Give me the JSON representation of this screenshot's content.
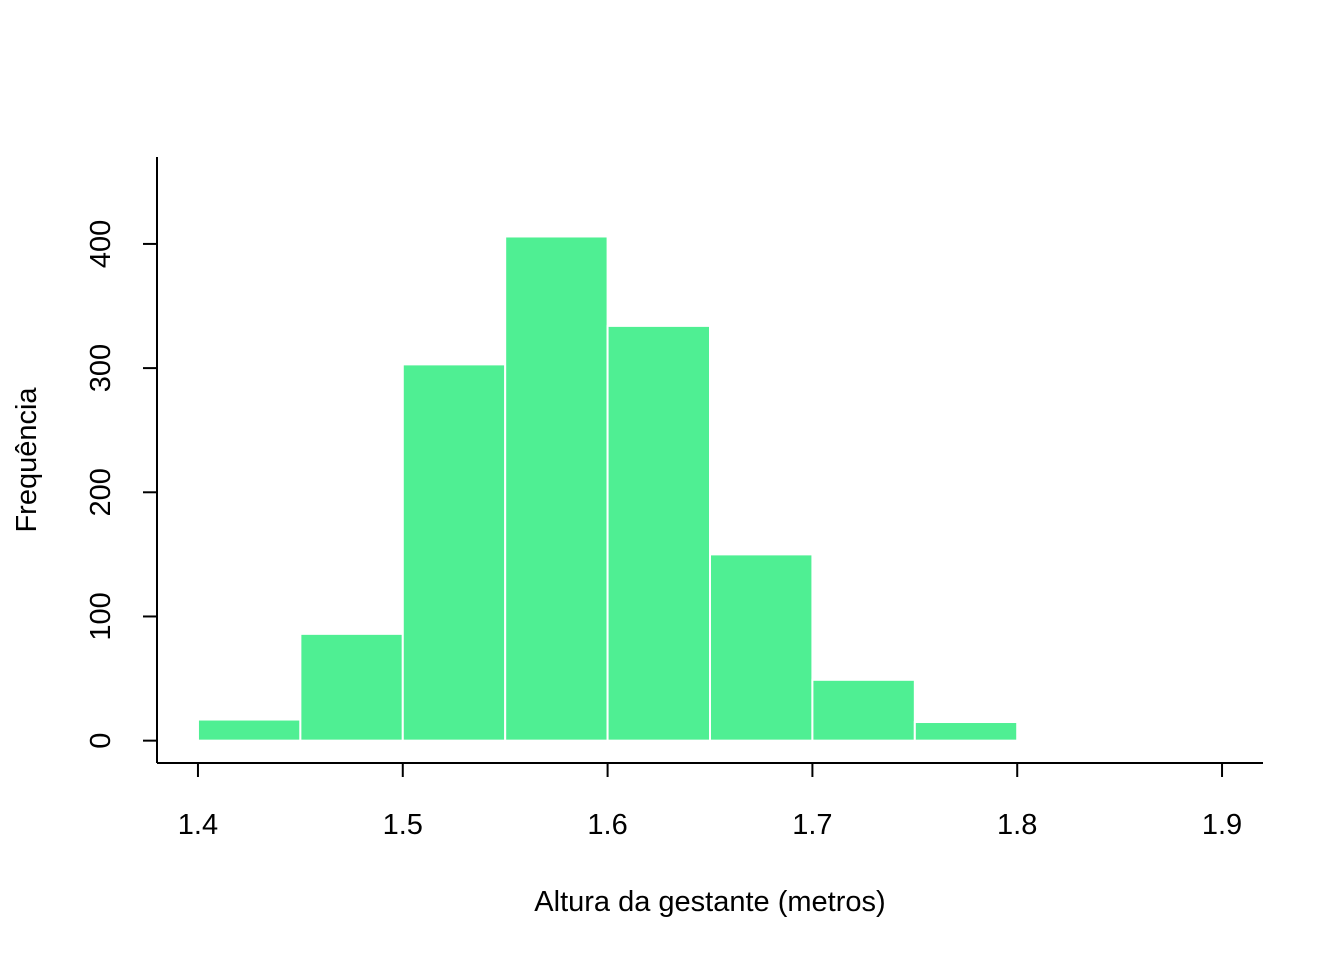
{
  "chart_data": {
    "type": "bar",
    "title": "",
    "xlabel": "Altura da gestante (metros)",
    "ylabel": "Frequência",
    "bins": [
      {
        "start": 1.4,
        "end": 1.45,
        "value": 17
      },
      {
        "start": 1.45,
        "end": 1.5,
        "value": 86
      },
      {
        "start": 1.5,
        "end": 1.55,
        "value": 303
      },
      {
        "start": 1.55,
        "end": 1.6,
        "value": 406
      },
      {
        "start": 1.6,
        "end": 1.65,
        "value": 334
      },
      {
        "start": 1.65,
        "end": 1.7,
        "value": 150
      },
      {
        "start": 1.7,
        "end": 1.75,
        "value": 49
      },
      {
        "start": 1.75,
        "end": 1.8,
        "value": 15
      }
    ],
    "xlim": [
      1.38,
      1.92
    ],
    "ylim": [
      -18,
      470
    ],
    "x_ticks": [
      {
        "value": 1.4,
        "label": "1.4"
      },
      {
        "value": 1.5,
        "label": "1.5"
      },
      {
        "value": 1.6,
        "label": "1.6"
      },
      {
        "value": 1.7,
        "label": "1.7"
      },
      {
        "value": 1.8,
        "label": "1.8"
      },
      {
        "value": 1.9,
        "label": "1.9"
      }
    ],
    "y_ticks": [
      {
        "value": 0,
        "label": "0"
      },
      {
        "value": 100,
        "label": "100"
      },
      {
        "value": 200,
        "label": "200"
      },
      {
        "value": 300,
        "label": "300"
      },
      {
        "value": 400,
        "label": "400"
      }
    ],
    "grid": false,
    "legend": "none",
    "bar_color": "#4FEF93",
    "bar_border_color": "#FFFFFF",
    "axis_color": "#000000"
  }
}
